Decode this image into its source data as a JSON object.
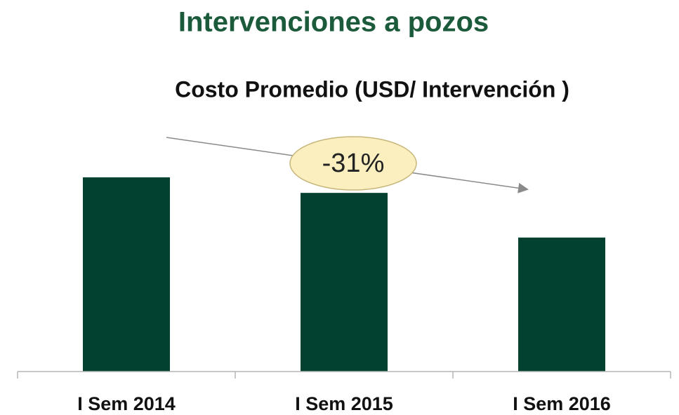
{
  "chart_data": {
    "type": "bar",
    "title": "Intervenciones a pozos",
    "subtitle": "Costo Promedio (USD/ Intervención )",
    "categories": [
      "I Sem 2014",
      "I Sem 2015",
      "I Sem 2016"
    ],
    "values": [
      100,
      92,
      69
    ],
    "color": "#02402f",
    "annotation": "-31%"
  }
}
